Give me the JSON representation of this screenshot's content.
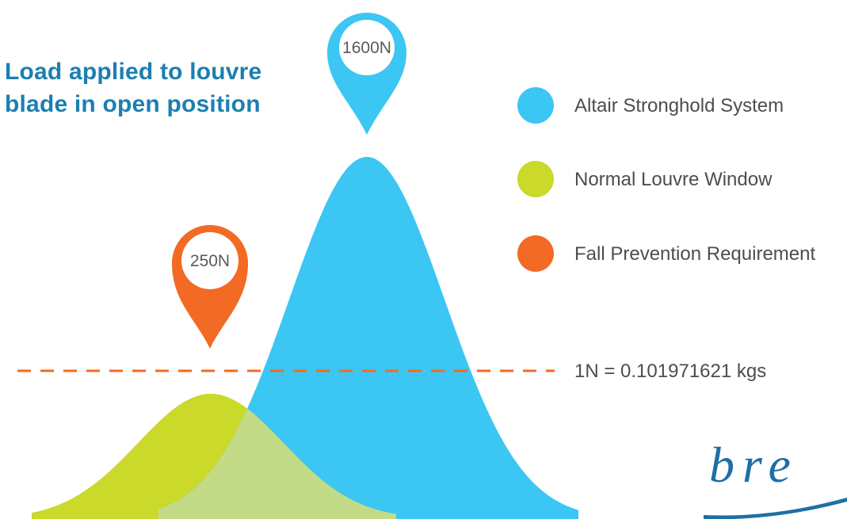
{
  "title_lines": [
    "Load applied to louvre",
    "blade in open position"
  ],
  "colors": {
    "title": "#1b7fb0",
    "altair": "#3cc6f3",
    "normal": "#cad92a",
    "overlap": "#c3db87",
    "fall": "#f26a24",
    "dashed_line": "#f26a24",
    "text": "#4d4d4d",
    "logo": "#1f6fa6"
  },
  "legend": [
    {
      "label": "Altair Stronghold System",
      "color": "#3cc6f3"
    },
    {
      "label": "Normal Louvre Window",
      "color": "#cad92a"
    },
    {
      "label": "Fall Prevention Requirement",
      "color": "#f26a24"
    }
  ],
  "conversion_note": "1N = 0.101971621 kgs",
  "logo": {
    "text": "bre"
  },
  "chart_data": {
    "type": "area",
    "title": "Load applied to louvre blade in open position",
    "series": [
      {
        "name": "Altair Stronghold System",
        "peak_label": "1600N",
        "peak_value": 1600,
        "color": "#3cc6f3"
      },
      {
        "name": "Normal Louvre Window",
        "color": "#cad92a"
      },
      {
        "name": "Fall Prevention Requirement",
        "peak_label": "250N",
        "peak_value": 250,
        "color": "#f26a24",
        "style": "dashed-threshold"
      }
    ],
    "annotations": [
      "1600N",
      "250N",
      "1N = 0.101971621 kgs"
    ],
    "grid": false,
    "legend_placement": "right"
  }
}
